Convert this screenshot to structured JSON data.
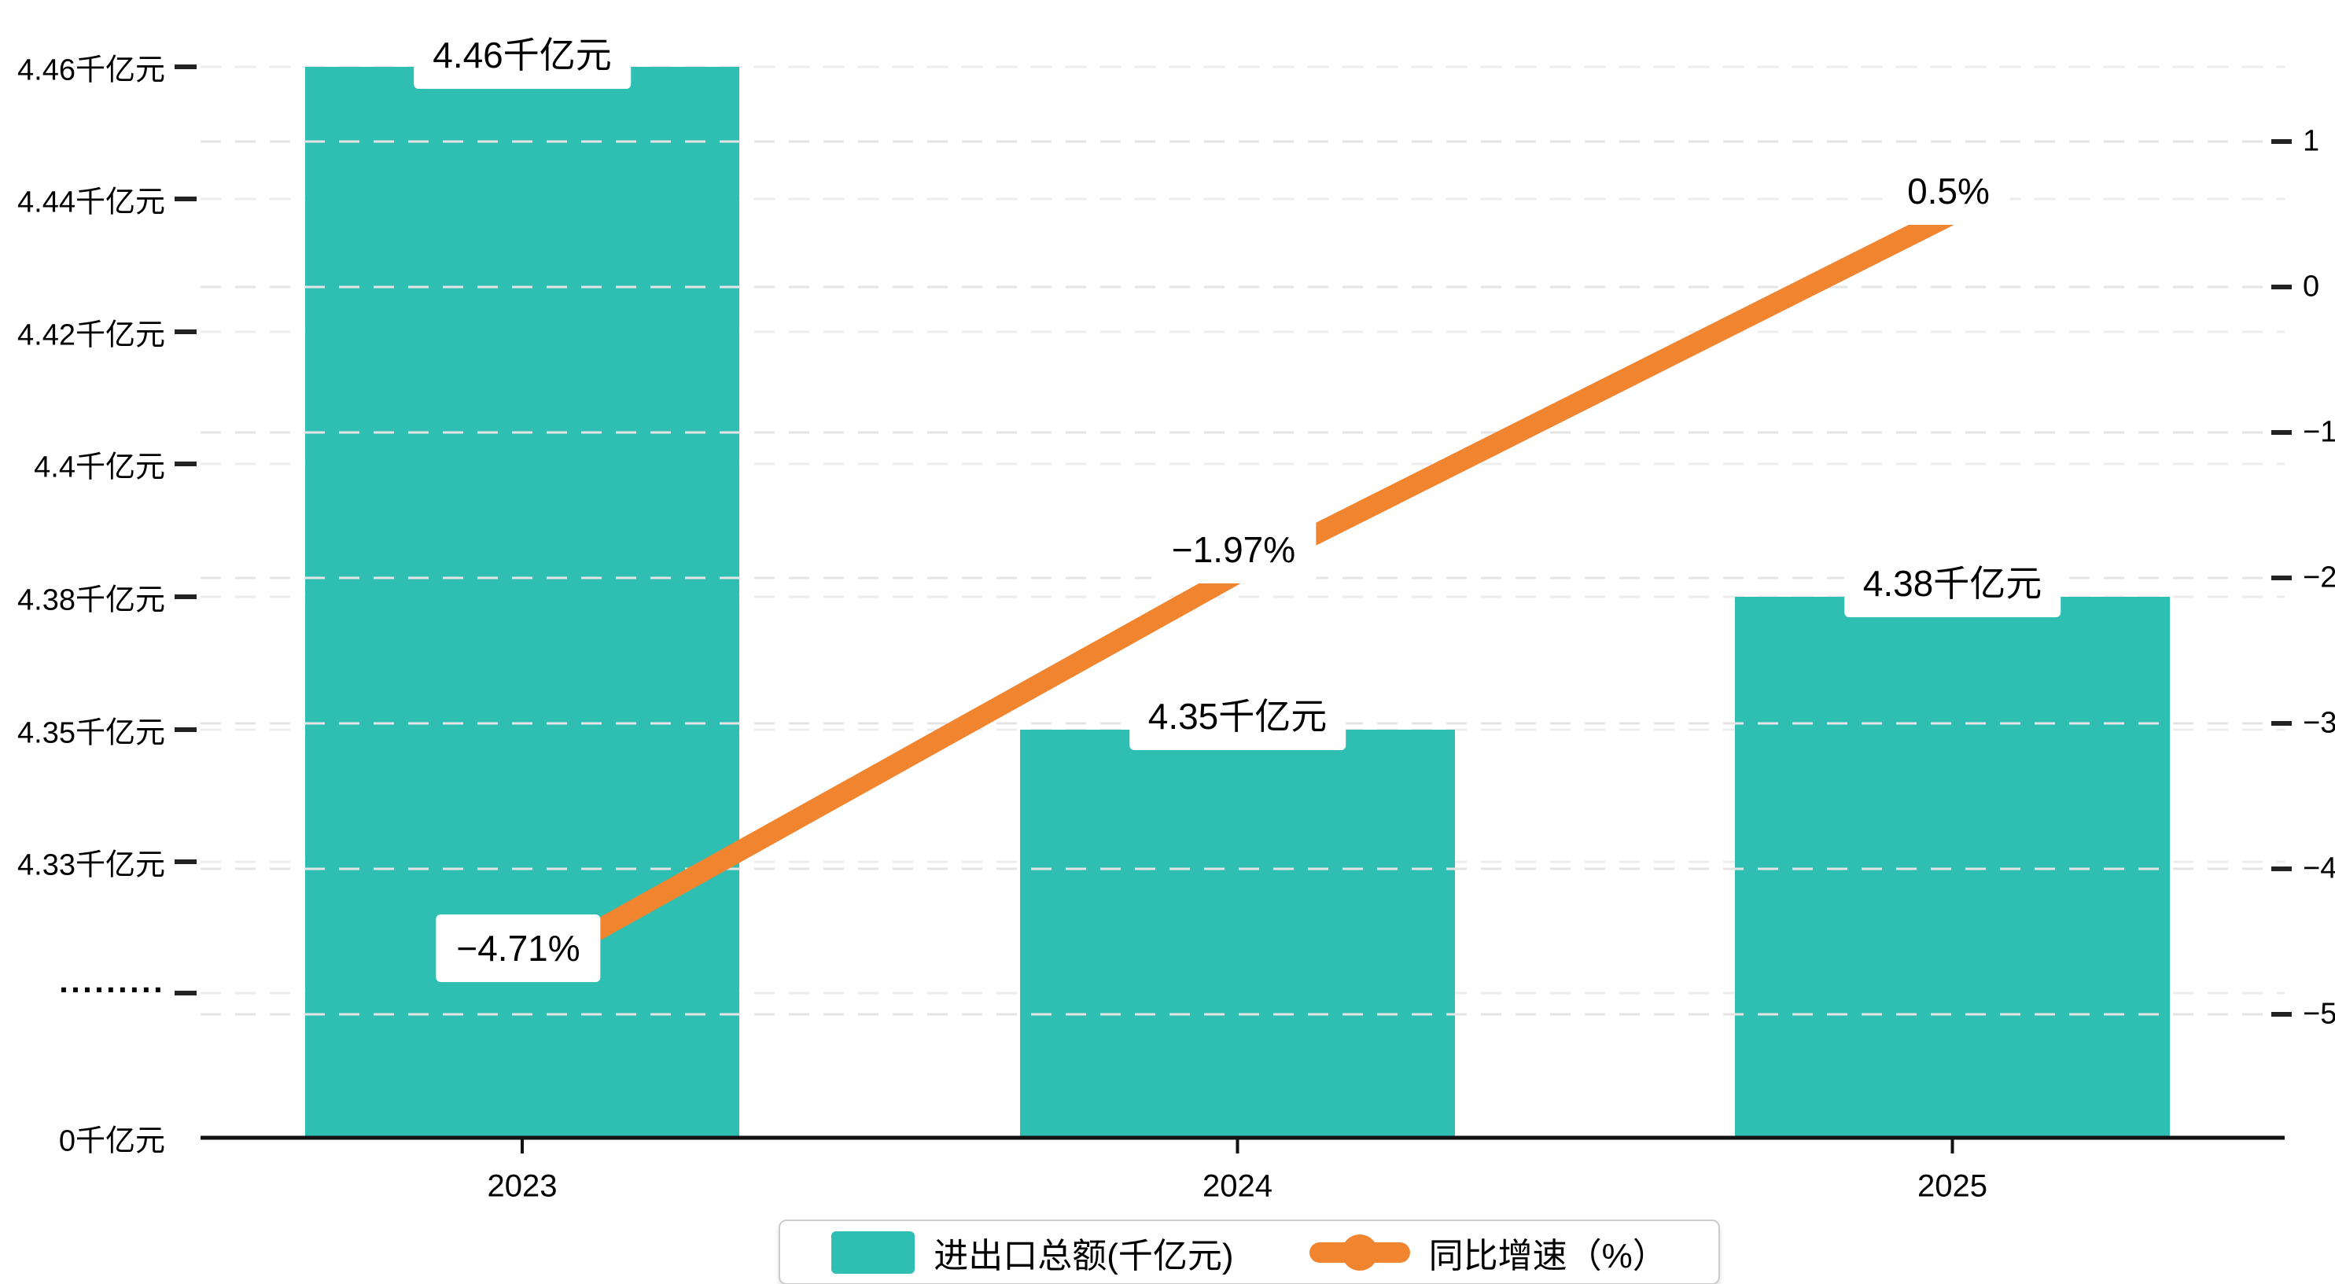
{
  "chart_data": {
    "type": "combo-bar-line",
    "categories": [
      "2023",
      "2024",
      "2025"
    ],
    "series": [
      {
        "name": "进出口总额(千亿元)",
        "type": "bar",
        "unit": "千亿元",
        "color": "#2FBFB2",
        "values": [
          4.46,
          4.35,
          4.38
        ],
        "data_labels": [
          "4.46千亿元",
          "4.35千亿元",
          "4.38千亿元"
        ]
      },
      {
        "name": "同比增速（%）",
        "type": "line",
        "unit": "%",
        "color": "#F0842F",
        "values": [
          -4.71,
          -1.97,
          0.5
        ],
        "data_labels": [
          "−4.71%",
          "−1.97%",
          "0.5%"
        ]
      }
    ],
    "left_axis": {
      "tick_labels": [
        "4.46千亿元",
        "4.44千亿元",
        "4.42千亿元",
        "4.4千亿元",
        "4.38千亿元",
        "4.35千亿元",
        "4.33千亿元",
        "·········",
        "0千亿元"
      ],
      "axis_break_label": "·········",
      "has_break": true
    },
    "right_axis": {
      "tick_labels": [
        "1",
        "0",
        "−1",
        "−2",
        "−3",
        "−4",
        "−5"
      ],
      "max": 1,
      "min": -5
    },
    "grid": "dashed-horizontal",
    "legend_position": "bottom-center"
  },
  "legend": {
    "items": [
      {
        "label": "进出口总额(千亿元)",
        "marker": "bar-swatch",
        "color": "#2FBFB2"
      },
      {
        "label": "同比增速（%）",
        "marker": "line-dot-marker",
        "color": "#F0842F"
      }
    ]
  },
  "colors": {
    "bar": "#2FBFB2",
    "line": "#F0842F",
    "grid_left": "#EDEDED",
    "grid_right": "#E4E4E4",
    "axis_line": "#111111",
    "label_bg": "#FFFFFF",
    "legend_border": "#CCCCCC",
    "text": "#000000"
  }
}
